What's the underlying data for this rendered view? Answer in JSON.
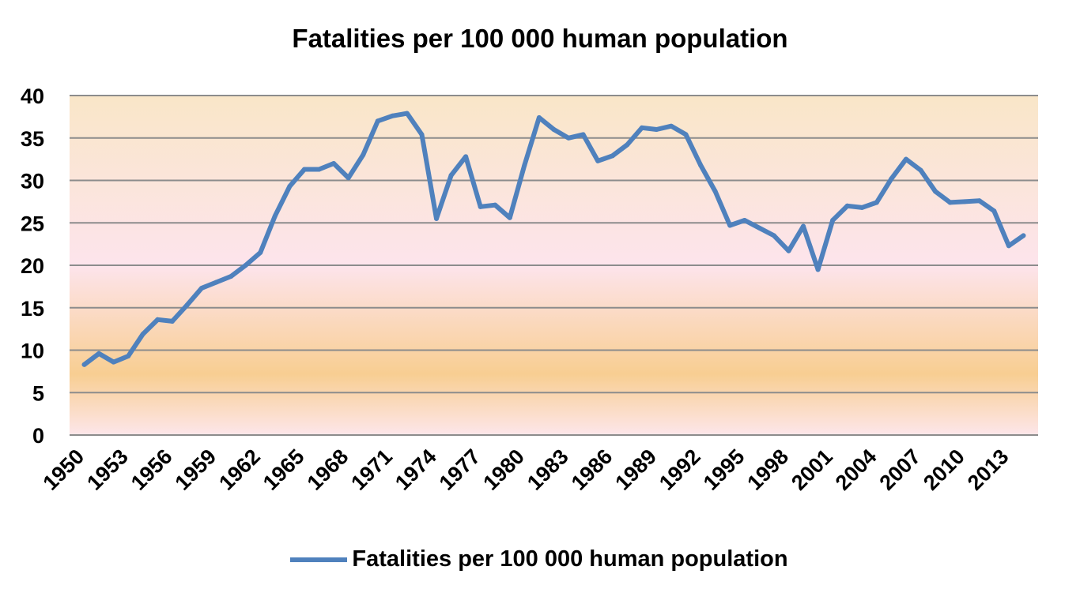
{
  "chart_data": {
    "type": "line",
    "title": "Fatalities per 100 000 human population",
    "xlabel": "",
    "ylabel": "",
    "ylim": [
      0,
      40
    ],
    "yticks": [
      0,
      5,
      10,
      15,
      20,
      25,
      30,
      35,
      40
    ],
    "xlim": [
      1950,
      2016
    ],
    "xticks": [
      "1950",
      "1953",
      "1956",
      "1959",
      "1962",
      "1965",
      "1968",
      "1971",
      "1974",
      "1977",
      "1980",
      "1983",
      "1986",
      "1989",
      "1992",
      "1995",
      "1998",
      "2001",
      "2004",
      "2007",
      "2010",
      "2013"
    ],
    "grid": true,
    "legend_position": "bottom",
    "x": [
      1951,
      1952,
      1953,
      1954,
      1955,
      1956,
      1957,
      1958,
      1959,
      1960,
      1961,
      1962,
      1963,
      1964,
      1965,
      1966,
      1967,
      1968,
      1969,
      1970,
      1971,
      1972,
      1973,
      1974,
      1975,
      1976,
      1977,
      1978,
      1979,
      1980,
      1981,
      1982,
      1983,
      1984,
      1985,
      1986,
      1987,
      1988,
      1989,
      1990,
      1991,
      1992,
      1993,
      1994,
      1995,
      1996,
      1997,
      1998,
      1999,
      2000,
      2001,
      2002,
      2003,
      2004,
      2005,
      2006,
      2007,
      2008,
      2009,
      2010,
      2011,
      2012,
      2013,
      2014,
      2015
    ],
    "series": [
      {
        "name": "Fatalities per 100 000 human population",
        "color": "#4f81bd",
        "values": [
          8.3,
          9.6,
          8.6,
          9.3,
          11.9,
          13.6,
          13.4,
          15.3,
          17.3,
          18.0,
          18.7,
          20.0,
          21.5,
          25.8,
          29.3,
          31.3,
          31.3,
          32.0,
          30.3,
          33.0,
          37.0,
          37.6,
          37.9,
          35.4,
          25.5,
          30.6,
          32.8,
          26.9,
          27.1,
          25.6,
          31.8,
          37.4,
          36.0,
          35.0,
          35.4,
          32.3,
          32.9,
          34.2,
          36.2,
          36.0,
          36.4,
          35.4,
          31.8,
          28.7,
          24.7,
          25.3,
          24.4,
          23.5,
          21.7,
          24.6,
          19.5,
          25.3,
          27.0,
          26.8,
          27.4,
          30.2,
          32.5,
          31.2,
          28.7,
          27.4,
          27.5,
          27.6,
          26.4,
          22.3,
          23.5
        ]
      }
    ]
  },
  "legend": {
    "label": "Fatalities per 100 000 human population"
  }
}
